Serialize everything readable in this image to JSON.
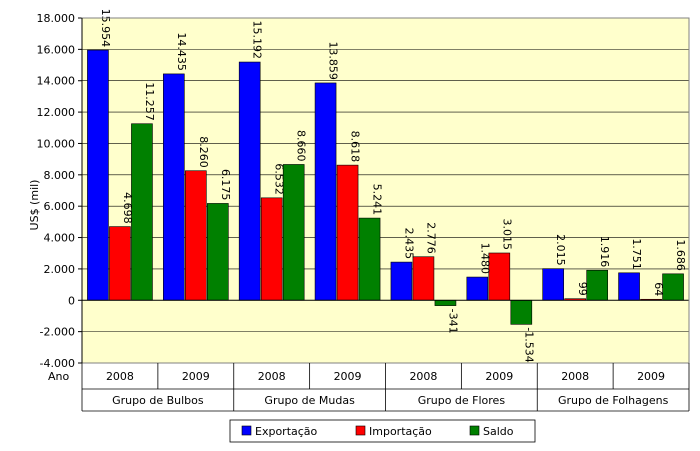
{
  "chart_data": {
    "type": "bar",
    "ylabel": "US$ (mil)",
    "ylim": [
      -4000,
      18000
    ],
    "yticks": [
      -4000,
      -2000,
      0,
      2000,
      4000,
      6000,
      8000,
      10000,
      12000,
      14000,
      16000,
      18000
    ],
    "ytick_labels": [
      "-4.000",
      "-2.000",
      "0",
      "2.000",
      "4.000",
      "6.000",
      "8.000",
      "10.000",
      "12.000",
      "14.000",
      "16.000",
      "18.000"
    ],
    "corner_label": "Ano",
    "years": [
      "2008",
      "2009",
      "2008",
      "2009",
      "2008",
      "2009",
      "2008",
      "2009"
    ],
    "groups": [
      "Grupo de Bulbos",
      "Grupo de Mudas",
      "Grupo de Flores",
      "Grupo de Folhagens"
    ],
    "grid": true,
    "legend_position": "bottom",
    "plot_background": "#ffffcc",
    "series": [
      {
        "name": "Exportação",
        "color": "#0000ff",
        "values": [
          15954,
          14435,
          15192,
          13859,
          2435,
          1480,
          2015,
          1751
        ],
        "labels": [
          "15.954",
          "14.435",
          "15.192",
          "13.859",
          "2.435",
          "1.480",
          "2.015",
          "1.751"
        ]
      },
      {
        "name": "Importação",
        "color": "#ff0000",
        "values": [
          4698,
          8260,
          6532,
          8618,
          2776,
          3015,
          99,
          64
        ],
        "labels": [
          "4.698",
          "8.260",
          "6.532",
          "8.618",
          "2.776",
          "3.015",
          "99",
          "64"
        ]
      },
      {
        "name": "Saldo",
        "color": "#008000",
        "values": [
          11257,
          6175,
          8660,
          5241,
          -341,
          -1534,
          1916,
          1686
        ],
        "labels": [
          "11.257",
          "6.175",
          "8.660",
          "5.241",
          "-341",
          "-1.534",
          "1.916",
          "1.686"
        ]
      }
    ]
  }
}
